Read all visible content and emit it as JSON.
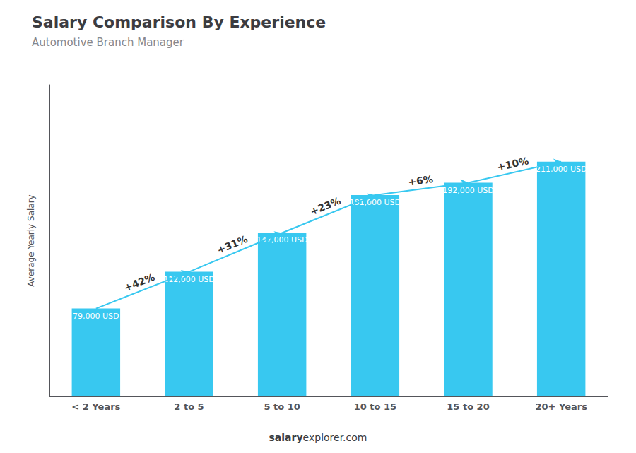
{
  "chart_data": {
    "type": "bar",
    "title": "Salary Comparison By Experience",
    "subtitle": "Automotive Branch Manager",
    "ylabel": "Average Yearly Salary",
    "categories": [
      "< 2 Years",
      "2 to 5",
      "5 to 10",
      "10 to 15",
      "15 to 20",
      "20+ Years"
    ],
    "values": [
      79000,
      112000,
      147000,
      181000,
      192000,
      211000
    ],
    "value_labels": [
      "79,000 USD",
      "112,000 USD",
      "147,000 USD",
      "181,000 USD",
      "192,000 USD",
      "211,000 USD"
    ],
    "data_labels": true,
    "annotations": [
      "+42%",
      "+31%",
      "+23%",
      "+6%",
      "+10%"
    ],
    "watermark": [
      "salary",
      "explorer.com"
    ],
    "color": "#38C8F0",
    "ylim": [
      0,
      280000
    ],
    "grid": false,
    "tick_labels": "x"
  }
}
